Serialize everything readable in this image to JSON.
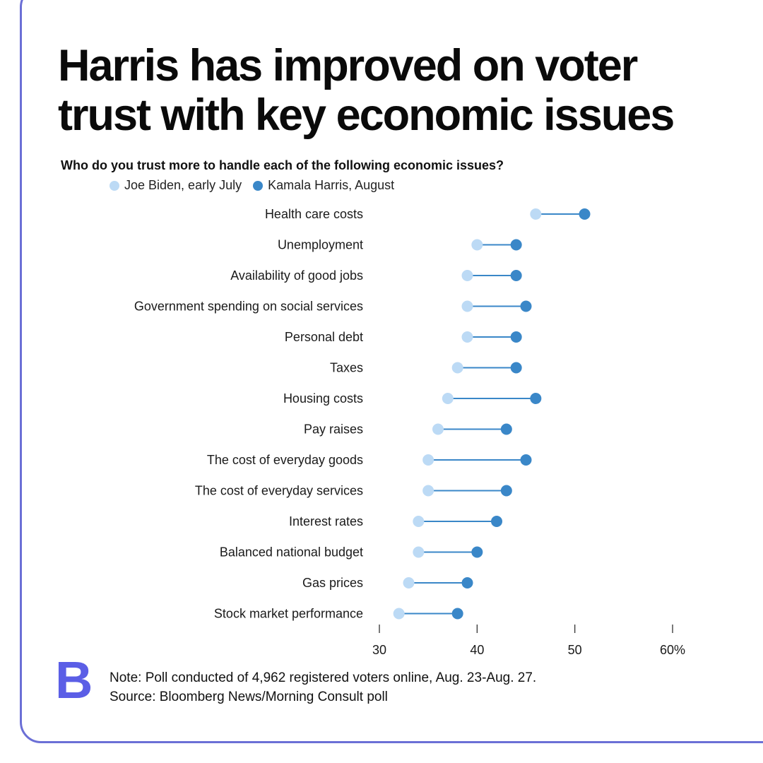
{
  "title": "Harris has improved on voter trust with key economic issues",
  "subtitle": "Who do you trust more to handle each of the following economic issues?",
  "colors": {
    "biden": "#bcdaf5",
    "harris": "#3a87c8",
    "frame": "#6b6fd6",
    "logo": "#5b5ee6"
  },
  "footer": {
    "logo": "B",
    "note": "Note: Poll conducted of 4,962 registered voters online, Aug. 23-Aug. 27.",
    "source": "Source: Bloomberg News/Morning Consult poll"
  },
  "chart_data": {
    "type": "dumbbell",
    "legend": [
      "Joe Biden, early July",
      "Kamala Harris, August"
    ],
    "xlim": [
      30,
      60
    ],
    "ticks": [
      30,
      40,
      50,
      60
    ],
    "tick_labels": [
      "30",
      "40",
      "50",
      "60%"
    ],
    "categories": [
      "Health care costs",
      "Unemployment",
      "Availability of good jobs",
      "Government spending on social services",
      "Personal debt",
      "Taxes",
      "Housing costs",
      "Pay raises",
      "The cost of everyday goods",
      "The cost of everyday services",
      "Interest rates",
      "Balanced national budget",
      "Gas prices",
      "Stock market performance"
    ],
    "series": [
      {
        "name": "Joe Biden, early July",
        "values": [
          46,
          40,
          39,
          39,
          39,
          38,
          37,
          36,
          35,
          35,
          34,
          34,
          33,
          32
        ]
      },
      {
        "name": "Kamala Harris, August",
        "values": [
          51,
          44,
          44,
          45,
          44,
          44,
          46,
          43,
          45,
          43,
          42,
          40,
          39,
          38
        ]
      }
    ]
  }
}
